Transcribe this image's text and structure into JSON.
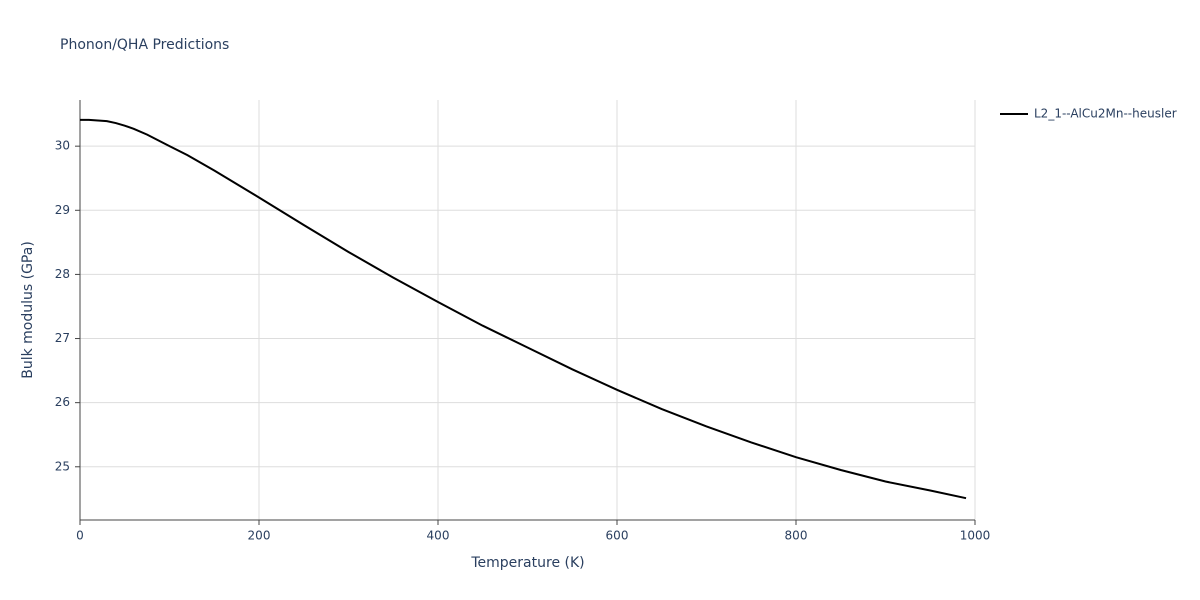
{
  "chart_data": {
    "type": "line",
    "title": "Phonon/QHA Predictions",
    "x_label": "Temperature (K)",
    "y_label": "Bulk modulus (GPa)",
    "x": [
      0,
      10,
      20,
      30,
      40,
      50,
      60,
      75,
      100,
      120,
      150,
      200,
      250,
      300,
      350,
      400,
      450,
      500,
      550,
      600,
      650,
      700,
      750,
      800,
      850,
      900,
      950,
      990
    ],
    "series": [
      {
        "name": "L2_1--AlCu2Mn--heusler",
        "color": "#000000",
        "values": [
          30.41,
          30.41,
          30.4,
          30.39,
          30.36,
          30.32,
          30.27,
          30.18,
          30.0,
          29.86,
          29.62,
          29.2,
          28.77,
          28.35,
          27.95,
          27.57,
          27.2,
          26.86,
          26.52,
          26.2,
          25.9,
          25.63,
          25.38,
          25.15,
          24.95,
          24.77,
          24.63,
          24.51
        ]
      }
    ],
    "xlim": [
      0,
      1000
    ],
    "xticks": [
      0,
      200,
      400,
      600,
      800,
      1000
    ],
    "ylim": [
      24.17,
      30.72
    ],
    "yticks": [
      25,
      26,
      27,
      28,
      29,
      30
    ],
    "grid": true,
    "legend": "right"
  }
}
